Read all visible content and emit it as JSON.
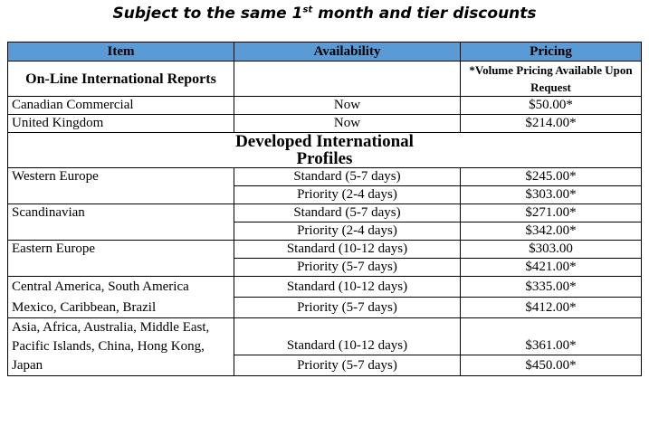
{
  "title": {
    "text": "Subject to the same 1",
    "sup": "st",
    "rest": " month and tier discounts"
  },
  "headers": {
    "item": "Item",
    "availability": "Availability",
    "pricing": "Pricing"
  },
  "section1": {
    "title": "On-Line International Reports",
    "note": "*Volume Pricing Available Upon Request",
    "rows": [
      {
        "item": "Canadian Commercial",
        "availability": "Now",
        "price": "$50.00*"
      },
      {
        "item": "United Kingdom",
        "availability": "Now",
        "price": "$214.00*"
      }
    ]
  },
  "section2": {
    "title": "Developed International Profiles",
    "groups": [
      {
        "item": "Western Europe",
        "r1": {
          "availability": "Standard (5-7 days)",
          "price": "$245.00*"
        },
        "r2": {
          "availability": "Priority (2-4 days)",
          "price": "$303.00*"
        }
      },
      {
        "item": "Scandinavian",
        "r1": {
          "availability": "Standard (5-7 days)",
          "price": "$271.00*"
        },
        "r2": {
          "availability": "Priority (2-4 days)",
          "price": "$342.00*"
        }
      },
      {
        "item": "Eastern Europe",
        "r1": {
          "availability": "Standard (10-12 days)",
          "price": "$303.00"
        },
        "r2": {
          "availability": "Priority (5-7 days)",
          "price": "$421.00*"
        }
      },
      {
        "item": "Central America, South America Mexico, Caribbean, Brazil",
        "r1": {
          "availability": "Standard (10-12 days)",
          "price": "$335.00*"
        },
        "r2": {
          "availability": "Priority (5-7 days)",
          "price": "$412.00*"
        }
      },
      {
        "item": "Asia, Africa, Australia, Middle East, Pacific Islands, China, Hong Kong, Japan",
        "r1": {
          "availability": "Standard (10-12 days)",
          "price": "$361.00*"
        },
        "r2": {
          "availability": "Priority (5-7 days)",
          "price": "$450.00*"
        }
      }
    ]
  }
}
